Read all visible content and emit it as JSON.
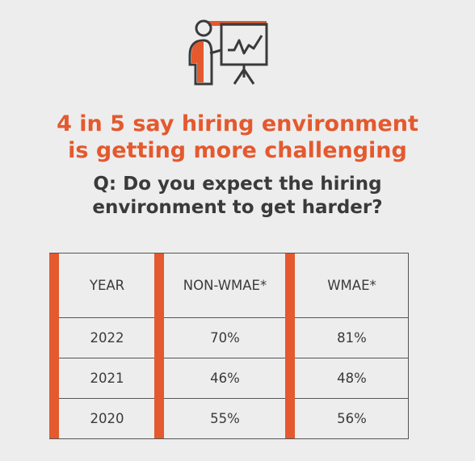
{
  "headline": {
    "line1": "4 in 5 say hiring environment",
    "line2": "is getting more challenging"
  },
  "question": {
    "line1": "Q: Do you expect the hiring",
    "line2": "environment to get harder?"
  },
  "icon": "presenter-chart-icon",
  "colors": {
    "accent": "#e4592e",
    "text": "#3a3a3a",
    "background": "#ededed"
  },
  "table": {
    "headers": [
      "YEAR",
      "NON-WMAE*",
      "WMAE*"
    ],
    "rows": [
      [
        "2022",
        "70%",
        "81%"
      ],
      [
        "2021",
        "46%",
        "48%"
      ],
      [
        "2020",
        "55%",
        "56%"
      ]
    ]
  }
}
